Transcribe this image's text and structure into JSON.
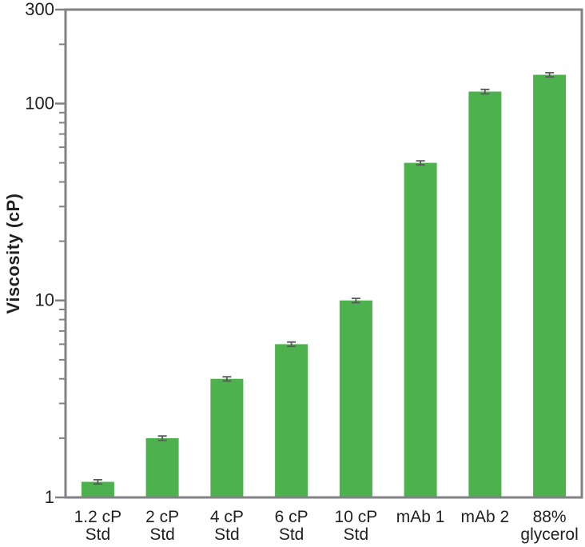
{
  "chart_data": {
    "type": "bar",
    "title": "",
    "ylabel": "Viscosity (cP)",
    "xlabel": "",
    "y_scale": "log",
    "ylim": [
      1,
      300
    ],
    "grid": false,
    "legend": false,
    "y_major_ticks": [
      1,
      10,
      100,
      300
    ],
    "y_major_tick_labels": [
      "1",
      "10",
      "100",
      "300"
    ],
    "y_minor_ticks": [
      2,
      3,
      4,
      5,
      6,
      7,
      8,
      9,
      20,
      30,
      40,
      50,
      60,
      70,
      80,
      90,
      200
    ],
    "categories": [
      "1.2 cP Std",
      "2 cP Std",
      "4 cP Std",
      "6 cP Std",
      "10 cP Std",
      "mAb 1",
      "mAb 2",
      "88% glycerol"
    ],
    "category_label_lines": [
      [
        "1.2 cP",
        "Std"
      ],
      [
        "2 cP",
        "Std"
      ],
      [
        "4 cP",
        "Std"
      ],
      [
        "6 cP",
        "Std"
      ],
      [
        "10 cP",
        "Std"
      ],
      [
        "mAb 1"
      ],
      [
        "mAb 2"
      ],
      [
        "88%",
        "glycerol"
      ]
    ],
    "values": [
      1.2,
      2,
      4,
      6,
      10,
      50,
      115,
      140
    ],
    "errors": [
      0.03,
      0.05,
      0.1,
      0.15,
      0.25,
      1.2,
      3,
      3.5
    ],
    "colors": {
      "bar": "#4db14e",
      "error_bar": "#58595b",
      "axis": "#808285",
      "text": "#231f20",
      "background": "#ffffff"
    }
  }
}
